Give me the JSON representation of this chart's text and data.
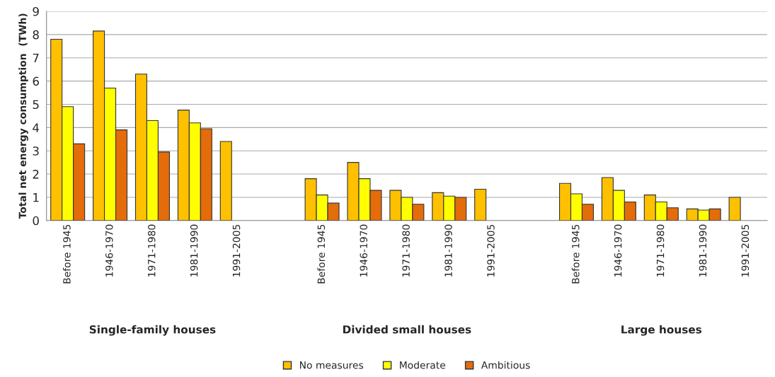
{
  "chart_data": {
    "type": "bar",
    "ylabel": "Total net energy consumption  (TWh)",
    "categories": [
      "Before 1945",
      "1946-1970",
      "1971-1980",
      "1981-1990",
      "1991-2005",
      null,
      "Before 1945",
      "1946-1970",
      "1971-1980",
      "1981-1990",
      "1991-2005",
      null,
      "Before 1945",
      "1946-1970",
      "1971-1980",
      "1981-1990",
      "1991-2005"
    ],
    "series": [
      {
        "name": "No measures",
        "color": "#ffc000",
        "values": [
          7.8,
          8.15,
          6.3,
          4.75,
          3.4,
          null,
          1.8,
          2.5,
          1.3,
          1.2,
          1.35,
          null,
          1.6,
          1.85,
          1.1,
          0.5,
          1.0
        ]
      },
      {
        "name": "Moderate",
        "color": "#ffff00",
        "values": [
          4.9,
          5.7,
          4.3,
          4.2,
          null,
          null,
          1.1,
          1.8,
          1.0,
          1.05,
          null,
          null,
          1.15,
          1.3,
          0.8,
          0.45,
          null
        ]
      },
      {
        "name": "Ambitious",
        "color": "#e46c0a",
        "values": [
          3.3,
          3.9,
          2.95,
          3.95,
          null,
          null,
          0.75,
          1.3,
          0.7,
          1.0,
          null,
          null,
          0.7,
          0.8,
          0.55,
          0.5,
          null
        ]
      }
    ],
    "annotations": [
      "Single-family houses",
      "Divided small houses",
      "Large houses"
    ],
    "ylim": [
      0,
      9
    ],
    "yticks": [
      0,
      1,
      2,
      3,
      4,
      5,
      6,
      7,
      8,
      9
    ],
    "grid": "y",
    "legend": "bottom"
  }
}
